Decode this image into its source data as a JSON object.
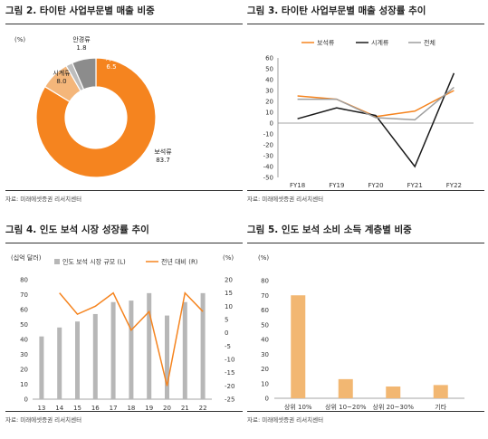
{
  "fig2": {
    "title": "그림 2. 타이탄 사업부문별 매출 비중",
    "source": "자료: 미래에셋증권 리서치센터",
    "unit": "(%)",
    "colors": {
      "보석류": "#f5841f",
      "시계류": "#f4b67a",
      "안경류": "#bdbdbd",
      "기타": "#8c8c8c"
    },
    "chart_data": {
      "type": "pie",
      "title": "",
      "categories": [
        "보석류",
        "시계류",
        "안경류",
        "기타"
      ],
      "values": [
        83.7,
        8.0,
        1.8,
        6.5
      ],
      "value_labels": [
        "83.7",
        "8.0",
        "1.8",
        "6.5"
      ],
      "donut": true
    }
  },
  "fig3": {
    "title": "그림 3. 타이탄 사업부문별 매출 성장률 추이",
    "source": "자료: 미래에셋증권 리서치센터",
    "colors": [
      "#f5841f",
      "#1a1a1a",
      "#9e9e9e"
    ],
    "legend_position": "top",
    "chart_data": {
      "type": "line",
      "title": "",
      "xlabel": "",
      "ylabel": "",
      "categories": [
        "FY18",
        "FY19",
        "FY20",
        "FY21",
        "FY22"
      ],
      "ylim": [
        -50,
        60
      ],
      "yticks": [
        60,
        50,
        40,
        30,
        20,
        10,
        0,
        -10,
        -20,
        -30,
        -40,
        -50
      ],
      "grid": false,
      "series": [
        {
          "name": "보석류",
          "values": [
            25,
            22,
            6,
            11,
            30
          ]
        },
        {
          "name": "시계류",
          "values": [
            4,
            14,
            7,
            -40,
            46
          ]
        },
        {
          "name": "전체",
          "values": [
            22,
            22,
            5,
            3,
            33
          ]
        }
      ]
    }
  },
  "fig4": {
    "title": "그림 4. 인도 보석 시장 성장률 추이",
    "source": "자료: 미래에셋증권 리서치센터",
    "left_unit": "(십억 달러)",
    "right_unit": "(%)",
    "colors": {
      "bar": "#b7b7b7",
      "line": "#f5841f"
    },
    "legend_position": "top",
    "chart_data": {
      "type": "bar",
      "title": "",
      "categories": [
        "13",
        "14",
        "15",
        "16",
        "17",
        "18",
        "19",
        "20",
        "21",
        "22"
      ],
      "ylim": [
        0,
        80
      ],
      "yticks": [
        80,
        70,
        60,
        50,
        40,
        30,
        20,
        10,
        0
      ],
      "y2lim": [
        -25,
        20
      ],
      "y2ticks": [
        20,
        15,
        10,
        5,
        0,
        -5,
        -10,
        -15,
        -20,
        -25
      ],
      "series": [
        {
          "name": "인도 보석 시장 규모 (L)",
          "type": "bar",
          "axis": "left",
          "values": [
            42,
            48,
            52,
            57,
            65,
            66,
            71,
            56,
            65,
            71
          ]
        },
        {
          "name": "전년 대비 (R)",
          "type": "line",
          "axis": "right",
          "values": [
            null,
            15,
            7,
            10,
            15,
            1,
            8,
            -20,
            15,
            8
          ]
        }
      ]
    }
  },
  "fig5": {
    "title": "그림 5. 인도 보석 소비 소득 계층별 비중",
    "source": "자료: 미래에셋증권 리서치센터",
    "unit": "(%)",
    "colors": {
      "bar": "#f2b772"
    },
    "chart_data": {
      "type": "bar",
      "title": "",
      "categories": [
        "상위 10%",
        "상위 10~20%",
        "상위 20~30%",
        "기타"
      ],
      "values": [
        70,
        13,
        8,
        9
      ],
      "ylim": [
        0,
        80
      ],
      "yticks": [
        80,
        70,
        60,
        50,
        40,
        30,
        20,
        10,
        0
      ]
    }
  }
}
